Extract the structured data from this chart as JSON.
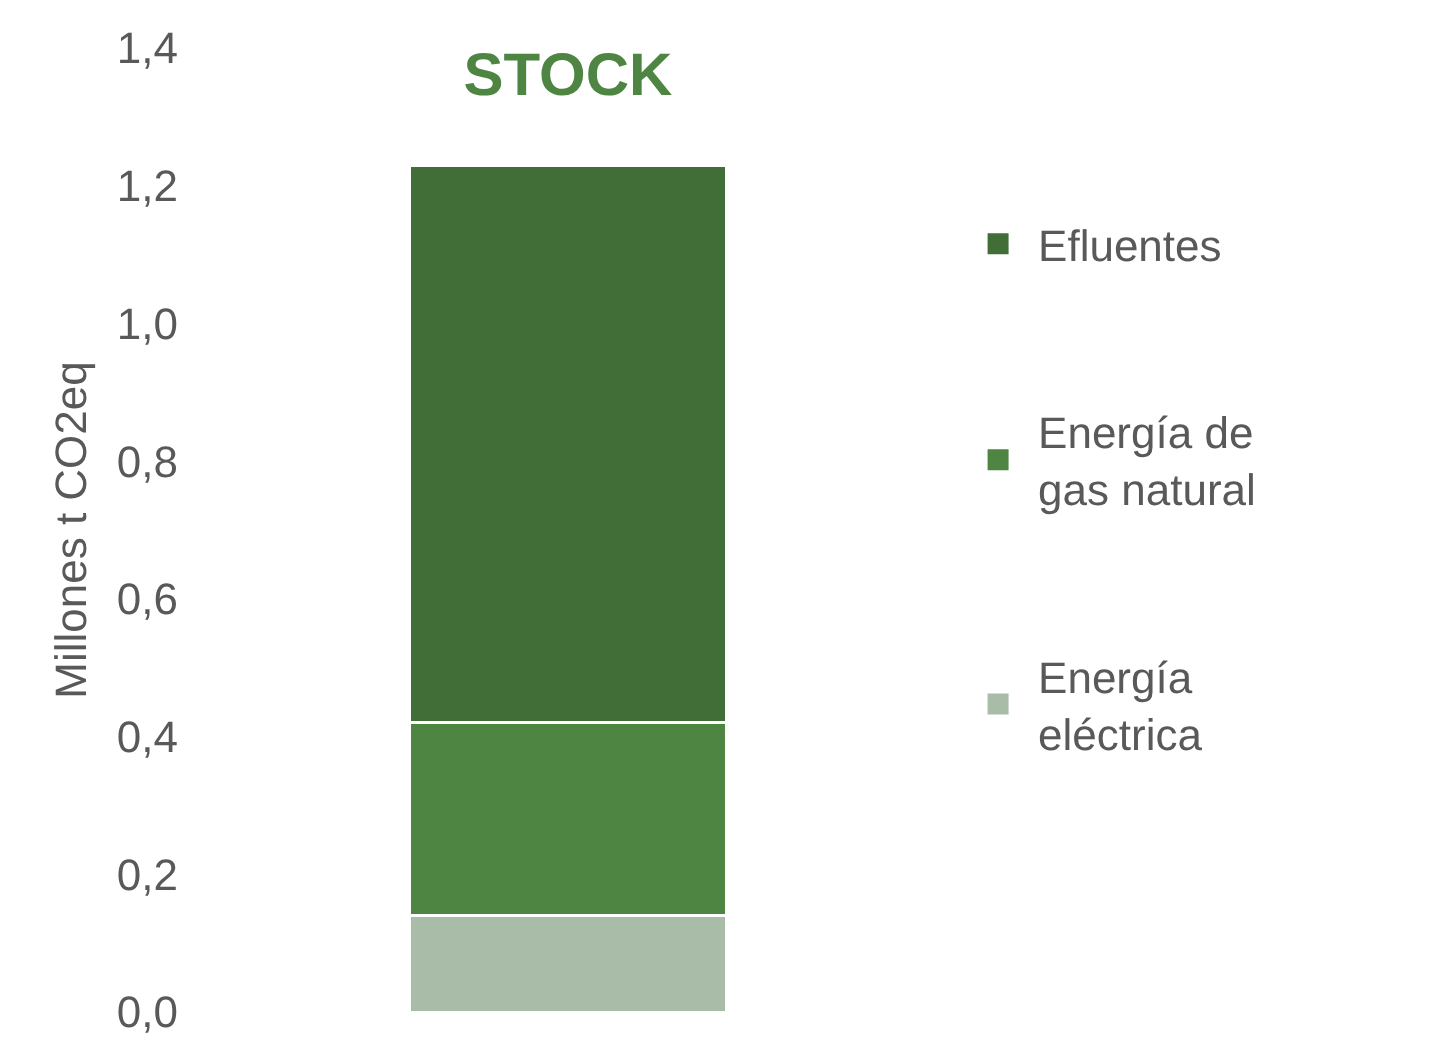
{
  "chart_data": {
    "type": "bar",
    "title": "STOCK",
    "ylabel": "Millones t CO2eq",
    "categories": [
      null
    ],
    "stacked": true,
    "series": [
      {
        "name": "Energía eléctrica",
        "color": "#a9bca8",
        "values": [
          0.14
        ]
      },
      {
        "name": "Energía de gas natural",
        "color": "#4e8542",
        "values": [
          0.28
        ]
      },
      {
        "name": "Efluentes",
        "color": "#416e37",
        "values": [
          0.81
        ]
      }
    ],
    "ylim": [
      0,
      1.4
    ],
    "yticks": [
      {
        "value": 0,
        "label": "0,0"
      },
      {
        "value": 0.2,
        "label": "0,2"
      },
      {
        "value": 0.4,
        "label": "0,4"
      },
      {
        "value": 0.6,
        "label": "0,6"
      },
      {
        "value": 0.8,
        "label": "0,8"
      },
      {
        "value": 1.0,
        "label": "1,0"
      },
      {
        "value": 1.2,
        "label": "1,2"
      },
      {
        "value": 1.4,
        "label": "1,4"
      }
    ],
    "tick_labels": "y",
    "legend": "right"
  }
}
